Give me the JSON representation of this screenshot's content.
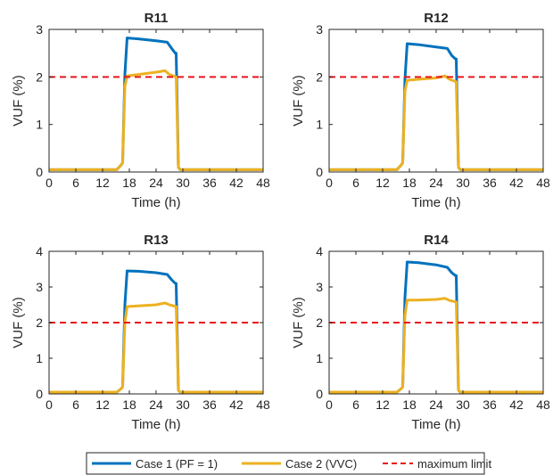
{
  "colors": {
    "case1": "#0072BD",
    "case2": "#EDB120",
    "limit": "#E8141A",
    "axis": "#262626"
  },
  "legend": {
    "position": "bottom-center",
    "entries": [
      {
        "label": "Case 1 (PF = 1)",
        "color": "#0072BD",
        "style": "solid"
      },
      {
        "label": "Case 2 (VVC)",
        "color": "#EDB120",
        "style": "solid"
      },
      {
        "label": "maximum limit",
        "color": "#E8141A",
        "style": "dashed"
      }
    ]
  },
  "chart_data": [
    {
      "type": "line",
      "title": "R11",
      "xlabel": "Time (h)",
      "ylabel": "VUF (%)",
      "xlim": [
        0,
        48
      ],
      "ylim": [
        0,
        3
      ],
      "xticks": [
        0,
        6,
        12,
        18,
        24,
        30,
        36,
        42,
        48
      ],
      "yticks": [
        0,
        1,
        2,
        3
      ],
      "limit": 2,
      "series": [
        {
          "name": "Case 1 (PF = 1)",
          "color": "#0072BD",
          "x": [
            0,
            15.2,
            16.2,
            16.5,
            17.0,
            17.5,
            20,
            24,
            26.5,
            27.5,
            28.3,
            28.5,
            29.0,
            29.4,
            48
          ],
          "y": [
            0.05,
            0.05,
            0.15,
            0.2,
            2.05,
            2.82,
            2.8,
            2.76,
            2.73,
            2.6,
            2.5,
            2.5,
            0.1,
            0.05,
            0.05
          ]
        },
        {
          "name": "Case 2 (VVC)",
          "color": "#EDB120",
          "x": [
            0,
            15.2,
            16.2,
            16.5,
            17.0,
            17.5,
            20,
            24,
            26,
            27,
            28.5,
            29.0,
            29.4,
            48
          ],
          "y": [
            0.05,
            0.05,
            0.15,
            0.2,
            1.8,
            2.02,
            2.05,
            2.1,
            2.13,
            2.05,
            2.0,
            0.1,
            0.05,
            0.05
          ]
        }
      ]
    },
    {
      "type": "line",
      "title": "R12",
      "xlabel": "Time (h)",
      "ylabel": "VUF (%)",
      "xlim": [
        0,
        48
      ],
      "ylim": [
        0,
        3
      ],
      "xticks": [
        0,
        6,
        12,
        18,
        24,
        30,
        36,
        42,
        48
      ],
      "yticks": [
        0,
        1,
        2,
        3
      ],
      "limit": 2,
      "series": [
        {
          "name": "Case 1 (PF = 1)",
          "color": "#0072BD",
          "x": [
            0,
            15.2,
            16.2,
            16.5,
            17.0,
            17.5,
            20,
            24,
            26.5,
            27.5,
            28.3,
            28.5,
            29.0,
            29.4,
            48
          ],
          "y": [
            0.05,
            0.05,
            0.15,
            0.2,
            1.95,
            2.7,
            2.68,
            2.63,
            2.6,
            2.45,
            2.38,
            2.38,
            0.1,
            0.05,
            0.05
          ]
        },
        {
          "name": "Case 2 (VVC)",
          "color": "#EDB120",
          "x": [
            0,
            15.2,
            16.2,
            16.5,
            17.0,
            17.5,
            20,
            24,
            26,
            27,
            28.5,
            29.0,
            29.4,
            48
          ],
          "y": [
            0.05,
            0.05,
            0.15,
            0.2,
            1.7,
            1.93,
            1.95,
            1.98,
            2.02,
            1.95,
            1.9,
            0.1,
            0.05,
            0.05
          ]
        }
      ]
    },
    {
      "type": "line",
      "title": "R13",
      "xlabel": "Time (h)",
      "ylabel": "VUF (%)",
      "xlim": [
        0,
        48
      ],
      "ylim": [
        0,
        4
      ],
      "xticks": [
        0,
        6,
        12,
        18,
        24,
        30,
        36,
        42,
        48
      ],
      "yticks": [
        0,
        1,
        2,
        3,
        4
      ],
      "limit": 2,
      "series": [
        {
          "name": "Case 1 (PF = 1)",
          "color": "#0072BD",
          "x": [
            0,
            15.2,
            16.2,
            16.5,
            17.0,
            17.5,
            20,
            24,
            26.5,
            27.5,
            28.3,
            28.5,
            29.0,
            29.4,
            48
          ],
          "y": [
            0.05,
            0.05,
            0.15,
            0.2,
            2.5,
            3.45,
            3.44,
            3.4,
            3.35,
            3.2,
            3.1,
            3.1,
            0.1,
            0.05,
            0.05
          ]
        },
        {
          "name": "Case 2 (VVC)",
          "color": "#EDB120",
          "x": [
            0,
            15.2,
            16.2,
            16.5,
            17.0,
            17.5,
            20,
            24,
            26,
            27,
            28.5,
            29.0,
            29.4,
            48
          ],
          "y": [
            0.05,
            0.05,
            0.15,
            0.2,
            2.0,
            2.45,
            2.47,
            2.5,
            2.55,
            2.5,
            2.45,
            0.1,
            0.05,
            0.05
          ]
        }
      ]
    },
    {
      "type": "line",
      "title": "R14",
      "xlabel": "Time (h)",
      "ylabel": "VUF (%)",
      "xlim": [
        0,
        48
      ],
      "ylim": [
        0,
        4
      ],
      "xticks": [
        0,
        6,
        12,
        18,
        24,
        30,
        36,
        42,
        48
      ],
      "yticks": [
        0,
        1,
        2,
        3,
        4
      ],
      "limit": 2,
      "series": [
        {
          "name": "Case 1 (PF = 1)",
          "color": "#0072BD",
          "x": [
            0,
            15.2,
            16.2,
            16.5,
            17.0,
            17.5,
            20,
            24,
            26.5,
            27.5,
            28.3,
            28.5,
            29.0,
            29.4,
            48
          ],
          "y": [
            0.05,
            0.05,
            0.15,
            0.2,
            2.7,
            3.7,
            3.68,
            3.62,
            3.55,
            3.4,
            3.32,
            3.32,
            0.1,
            0.05,
            0.05
          ]
        },
        {
          "name": "Case 2 (VVC)",
          "color": "#EDB120",
          "x": [
            0,
            15.2,
            16.2,
            16.5,
            17.0,
            17.5,
            20,
            24,
            26,
            27,
            28.5,
            29.0,
            29.4,
            48
          ],
          "y": [
            0.05,
            0.05,
            0.15,
            0.2,
            2.2,
            2.63,
            2.63,
            2.65,
            2.68,
            2.62,
            2.58,
            0.1,
            0.05,
            0.05
          ]
        }
      ]
    }
  ]
}
